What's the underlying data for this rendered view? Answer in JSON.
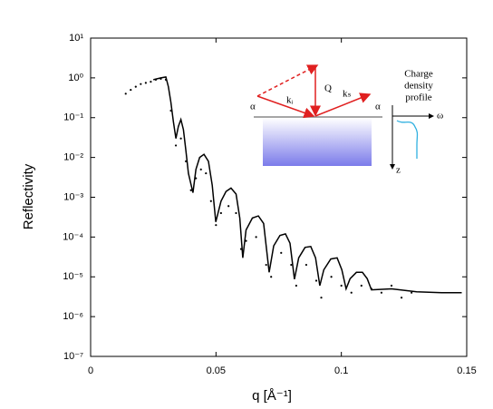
{
  "chart_data": {
    "type": "line",
    "xlabel": "q [Å⁻¹]",
    "ylabel": "Reflectivity",
    "xlim": [
      0,
      0.15
    ],
    "xticks": [
      0,
      0.05,
      0.1,
      0.15
    ],
    "ylim": [
      1e-07,
      10
    ],
    "log_y": true,
    "yticks": [
      {
        "value": 10,
        "label": "10¹"
      },
      {
        "value": 1,
        "label": "10⁰"
      },
      {
        "value": 0.1,
        "label": "10⁻¹"
      },
      {
        "value": 0.01,
        "label": "10⁻²"
      },
      {
        "value": 0.001,
        "label": "10⁻³"
      },
      {
        "value": 0.0001,
        "label": "10⁻⁴"
      },
      {
        "value": 1e-05,
        "label": "10⁻⁵"
      },
      {
        "value": 1e-06,
        "label": "10⁻⁶"
      },
      {
        "value": 1e-07,
        "label": "10⁻⁷"
      }
    ],
    "series": [
      {
        "type": "line",
        "color": "#000000",
        "x": [
          0.025,
          0.028,
          0.03,
          0.031,
          0.032,
          0.033,
          0.034,
          0.035,
          0.036,
          0.037,
          0.038,
          0.039,
          0.0408,
          0.042,
          0.0435,
          0.0452,
          0.047,
          0.0485,
          0.0499,
          0.052,
          0.054,
          0.056,
          0.058,
          0.0595,
          0.0607,
          0.062,
          0.0645,
          0.0669,
          0.069,
          0.0712,
          0.073,
          0.0755,
          0.0777,
          0.0795,
          0.0813,
          0.083,
          0.0855,
          0.0878,
          0.0897,
          0.0914,
          0.093,
          0.0958,
          0.0983,
          0.1002,
          0.1019,
          0.1035,
          0.106,
          0.1084,
          0.1103,
          0.112,
          0.12,
          0.13,
          0.14,
          0.148
        ],
        "values": [
          0.9,
          1.0,
          1.05,
          0.6,
          0.25,
          0.08,
          0.03,
          0.06,
          0.09,
          0.05,
          0.015,
          0.004,
          0.0013,
          0.005,
          0.01,
          0.012,
          0.008,
          0.002,
          0.00024,
          0.0008,
          0.0014,
          0.0017,
          0.0012,
          0.0003,
          3e-05,
          0.00015,
          0.0003,
          0.00034,
          0.00022,
          1.3e-05,
          6e-05,
          0.00011,
          0.00012,
          7e-05,
          8.7e-06,
          3e-05,
          5.5e-05,
          5.8e-05,
          3e-05,
          6e-06,
          1.5e-05,
          2.8e-05,
          3e-05,
          1.5e-05,
          5e-06,
          9e-06,
          1.3e-05,
          1.3e-05,
          9e-06,
          4.7e-06,
          5e-06,
          4.2e-06,
          4e-06,
          4e-06
        ]
      },
      {
        "type": "scatter",
        "color": "#000000",
        "x": [
          0.014,
          0.016,
          0.018,
          0.02,
          0.022,
          0.024,
          0.026,
          0.028,
          0.03,
          0.032,
          0.034,
          0.036,
          0.038,
          0.04,
          0.042,
          0.044,
          0.046,
          0.048,
          0.05,
          0.052,
          0.055,
          0.058,
          0.06,
          0.062,
          0.066,
          0.07,
          0.072,
          0.076,
          0.08,
          0.082,
          0.086,
          0.09,
          0.092,
          0.096,
          0.1,
          0.104,
          0.108,
          0.112,
          0.116,
          0.12,
          0.124,
          0.128
        ],
        "values": [
          0.4,
          0.5,
          0.6,
          0.7,
          0.75,
          0.8,
          0.9,
          0.95,
          0.9,
          0.15,
          0.02,
          0.03,
          0.008,
          0.0015,
          0.003,
          0.005,
          0.004,
          0.0008,
          0.0002,
          0.0004,
          0.0006,
          0.0004,
          5e-05,
          8e-05,
          0.0001,
          2e-05,
          1e-05,
          4e-05,
          2e-05,
          6e-06,
          2e-05,
          8e-06,
          3e-06,
          1e-05,
          6e-06,
          4e-06,
          6e-06,
          5e-06,
          4e-06,
          6e-06,
          3e-06,
          4e-06
        ]
      }
    ],
    "annotations": [
      "Q",
      "kᵢ",
      "kₛ",
      "α",
      "α",
      "Charge",
      "density",
      "profile",
      "ω",
      "z"
    ]
  }
}
